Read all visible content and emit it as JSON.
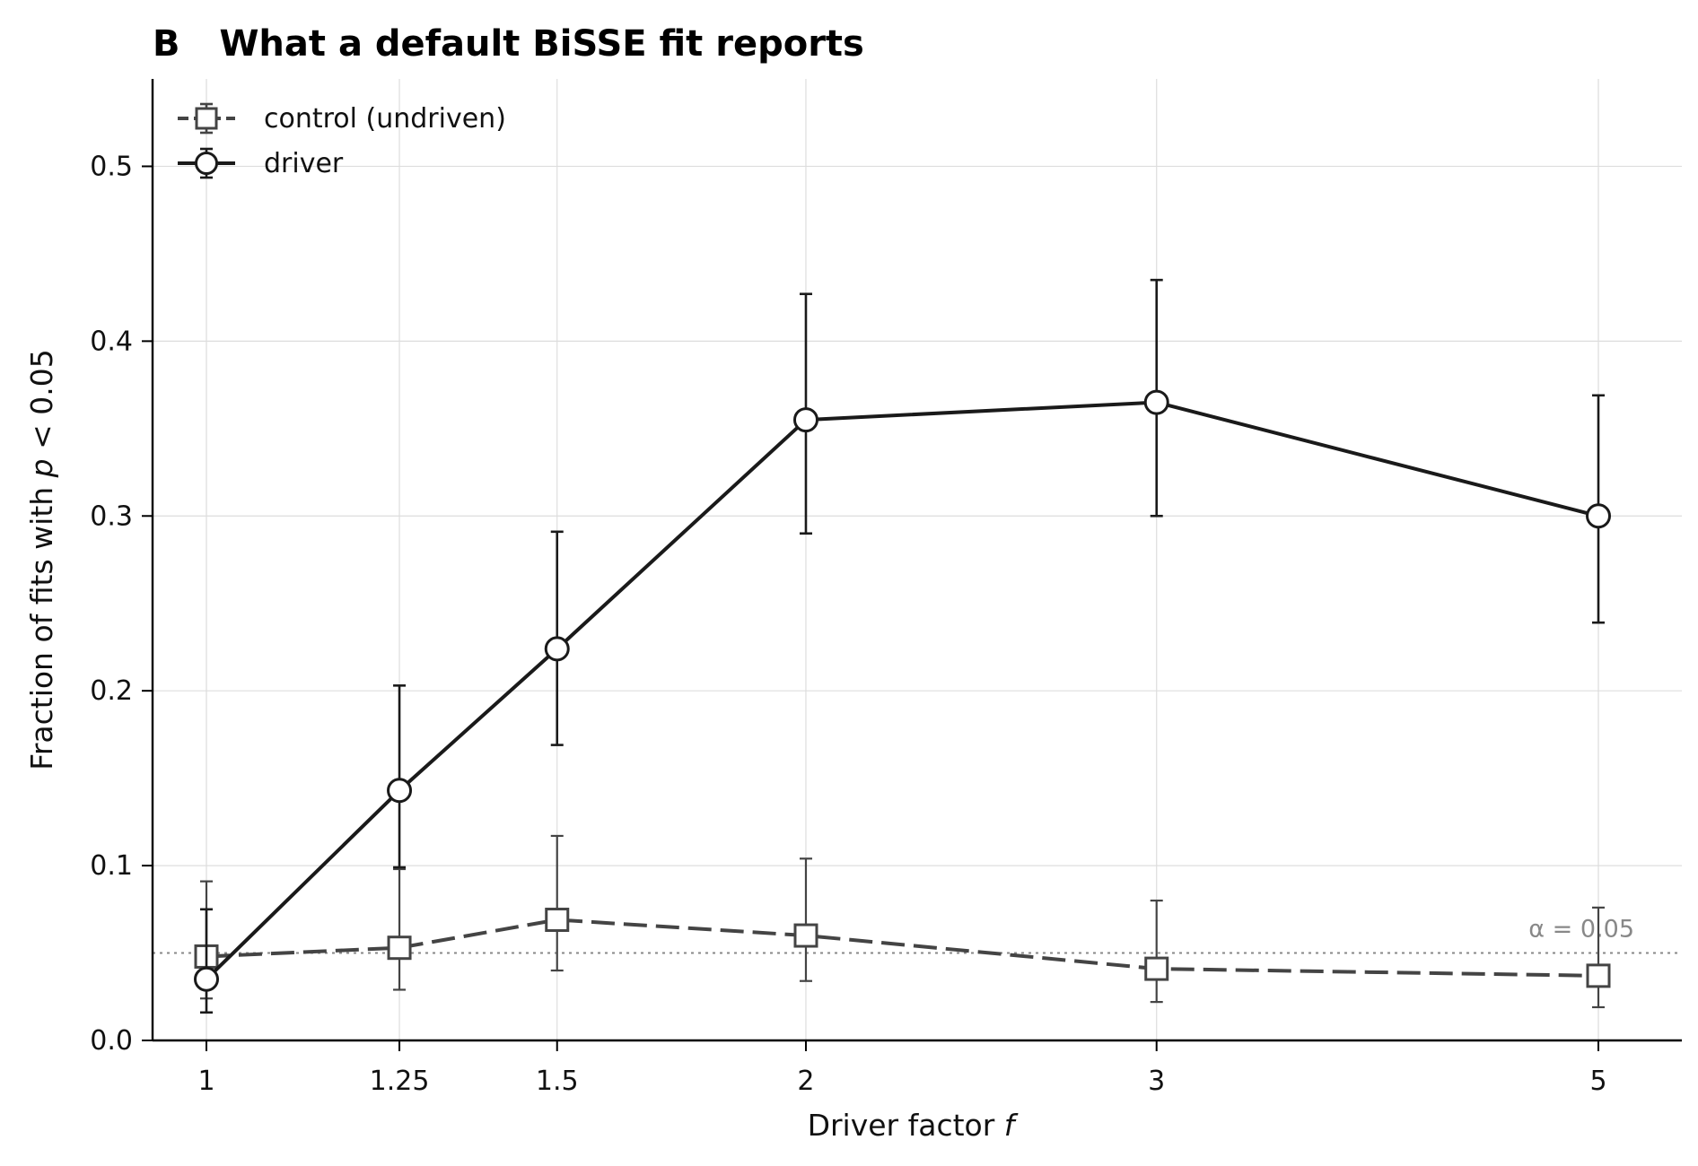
{
  "chart_data": {
    "type": "line",
    "panel_letter": "B",
    "title": "What a default BiSSE fit reports",
    "xlabel_prefix": "Driver factor ",
    "xlabel_var": "f",
    "ylabel_prefix": "Fraction of fits with ",
    "ylabel_var": "p",
    "ylabel_suffix": " < 0.05",
    "x_scale": "log",
    "x": [
      1,
      1.25,
      1.5,
      2,
      3,
      5
    ],
    "x_tick_labels": [
      "1",
      "1.25",
      "1.5",
      "2",
      "3",
      "5"
    ],
    "ylim": [
      0,
      0.55
    ],
    "y_ticks": [
      0.0,
      0.1,
      0.2,
      0.3,
      0.4,
      0.5
    ],
    "y_tick_labels": [
      "0.0",
      "0.1",
      "0.2",
      "0.3",
      "0.4",
      "0.5"
    ],
    "grid": true,
    "legend_position": "top-left",
    "series": [
      {
        "name": "control (undriven)",
        "values": [
          0.048,
          0.053,
          0.069,
          0.06,
          0.041,
          0.037
        ],
        "err_low": [
          0.024,
          0.029,
          0.04,
          0.034,
          0.022,
          0.019
        ],
        "err_high": [
          0.091,
          0.098,
          0.117,
          0.104,
          0.08,
          0.076
        ],
        "marker": "square",
        "line_style": "dashed",
        "color": "#444444"
      },
      {
        "name": "driver",
        "values": [
          0.035,
          0.143,
          0.224,
          0.355,
          0.365,
          0.3
        ],
        "err_low": [
          0.016,
          0.099,
          0.169,
          0.29,
          0.3,
          0.239
        ],
        "err_high": [
          0.075,
          0.203,
          0.291,
          0.427,
          0.435,
          0.369
        ],
        "marker": "circle",
        "line_style": "solid",
        "color": "#1a1a1a"
      }
    ],
    "reference_line": {
      "y": 0.05,
      "label": "α = 0.05",
      "color": "#888888",
      "style": "dotted"
    }
  }
}
